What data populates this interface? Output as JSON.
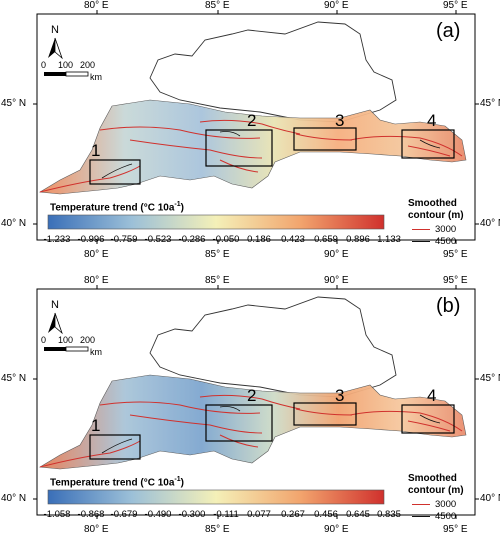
{
  "panels": [
    {
      "id": "a",
      "label": "(a)",
      "legend_title_main": "Temperature trend (°C 10a",
      "legend_title_sup": "-1",
      "legend_title_end": ")",
      "colorbar_labels": [
        "-1.233",
        "-0.996",
        "-0.759",
        "-0.523",
        "-0.286",
        "-0.050",
        "0.186",
        "0.423",
        "0.659",
        "0.896",
        "1.133"
      ],
      "range": [
        -1.233,
        1.133
      ]
    },
    {
      "id": "b",
      "label": "(b)",
      "legend_title_main": "Temperature trend (°C 10a",
      "legend_title_sup": "-1",
      "legend_title_end": ")",
      "colorbar_labels": [
        "-1.058",
        "-0.868",
        "-0.679",
        "-0.490",
        "-0.300",
        "-0.111",
        "0.077",
        "0.267",
        "0.456",
        "0.645",
        "0.835"
      ],
      "range": [
        -1.058,
        0.835
      ]
    }
  ],
  "lon_ticks": [
    "80° E",
    "85° E",
    "90° E",
    "95° E"
  ],
  "lat_ticks": [
    "45° N",
    "40° N"
  ],
  "north_label": "N",
  "scale_bar": {
    "labels": [
      "0",
      "100",
      "200"
    ],
    "unit": "km"
  },
  "regions": [
    "1",
    "2",
    "3",
    "4"
  ],
  "contour_legend": {
    "title_line1": "Smoothed",
    "title_line2": "contour (m)",
    "items": [
      {
        "label": "3000",
        "color": "#d0312d"
      },
      {
        "label": "4500",
        "color": "#111111"
      }
    ]
  },
  "colors": {
    "cold": "#3a6fb8",
    "mid": "#f4f0b8",
    "warm": "#d0312d"
  }
}
